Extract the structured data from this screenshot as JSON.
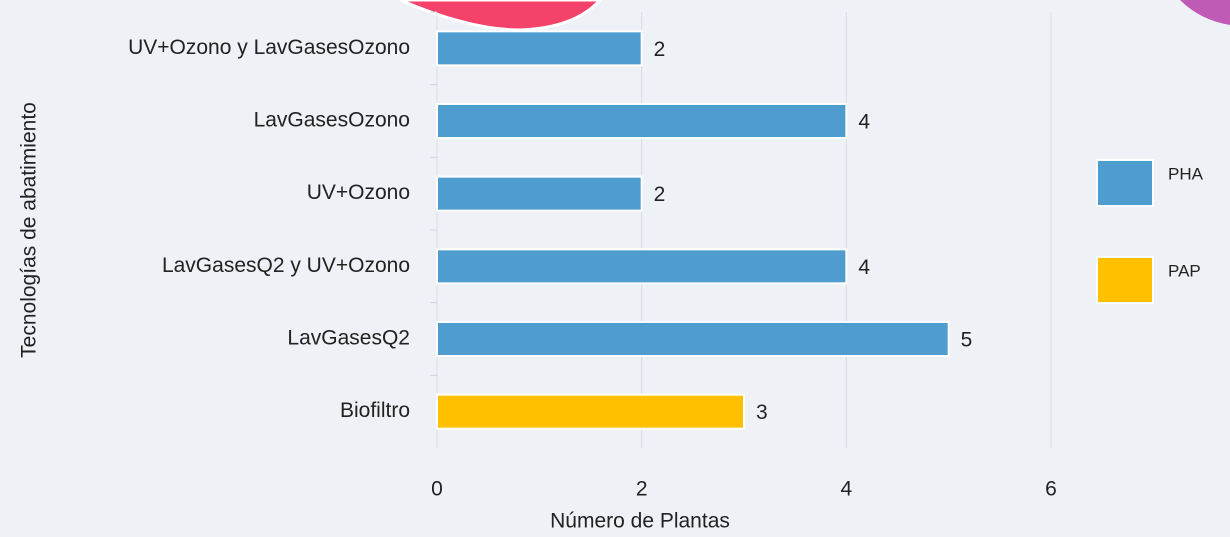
{
  "chart_data": {
    "type": "bar",
    "orientation": "horizontal",
    "categories": [
      "UV+Ozono y LavGasesOzono",
      "LavGasesOzono",
      "UV+Ozono",
      "LavGasesQ2 y UV+Ozono",
      "LavGasesQ2",
      "Biofiltro"
    ],
    "series": [
      {
        "name": "PHA",
        "color": "#4f9dcf",
        "values": [
          2,
          4,
          2,
          4,
          5,
          null
        ]
      },
      {
        "name": "PAP",
        "color": "#ffc000",
        "values": [
          null,
          null,
          null,
          null,
          null,
          3
        ]
      }
    ],
    "xlim": [
      0,
      6
    ],
    "xticks": [
      0,
      2,
      4,
      6
    ],
    "grid": true,
    "xlabel": "Número de Plantas",
    "ylabel": "Tecnologías de abatimiento",
    "legend": "right"
  }
}
